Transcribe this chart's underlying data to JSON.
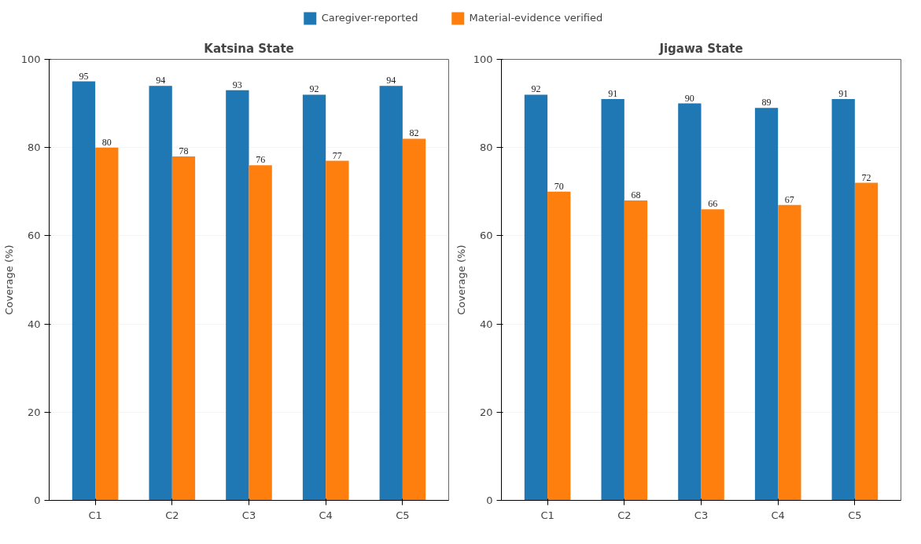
{
  "chart_data": [
    {
      "type": "bar",
      "title": "Katsina State",
      "ylabel": "Coverage (%)",
      "categories": [
        "C1",
        "C2",
        "C3",
        "C4",
        "C5"
      ],
      "series": [
        {
          "name": "Caregiver-reported",
          "color": "#1f77b4",
          "values": [
            95,
            94,
            93,
            92,
            94
          ]
        },
        {
          "name": "Material-evidence verified",
          "color": "#ff7f0e",
          "values": [
            80,
            78,
            76,
            77,
            82
          ]
        }
      ],
      "ylim": [
        0,
        100
      ],
      "yticks": [
        0,
        20,
        40,
        60,
        80,
        100
      ],
      "grid": "y",
      "data_labels": true,
      "legend": "top"
    },
    {
      "type": "bar",
      "title": "Jigawa State",
      "ylabel": "Coverage (%)",
      "categories": [
        "C1",
        "C2",
        "C3",
        "C4",
        "C5"
      ],
      "series": [
        {
          "color": "#1f77b4",
          "values": [
            92,
            91,
            90,
            89,
            91
          ]
        },
        {
          "color": "#ff7f0e",
          "values": [
            70,
            68,
            66,
            67,
            72
          ]
        }
      ],
      "ylim": [
        0,
        100
      ],
      "yticks": [
        0,
        20,
        40,
        60,
        80,
        100
      ],
      "grid": "y",
      "data_labels": true
    }
  ]
}
